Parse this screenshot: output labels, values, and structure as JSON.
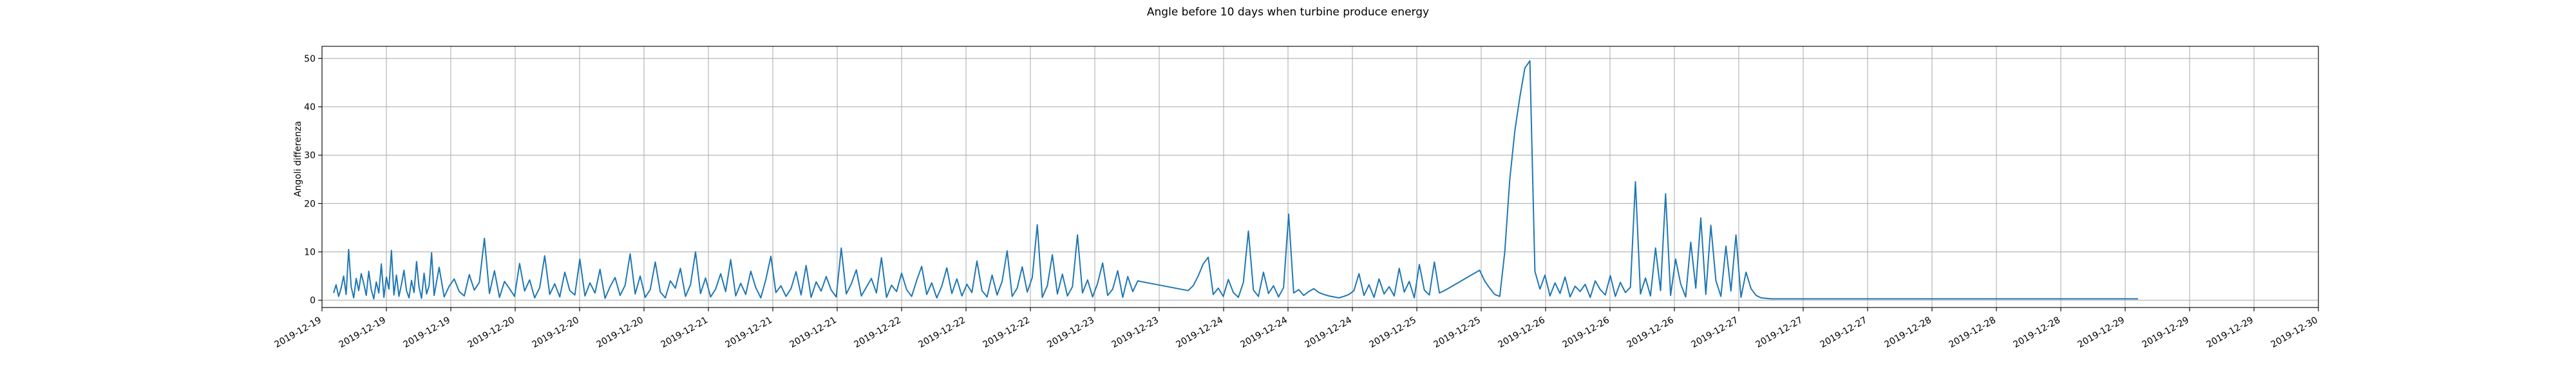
{
  "chart_data": {
    "type": "line",
    "title": "Angle before 10 days when turbine produce energy",
    "xlabel": "",
    "ylabel": "Angoli differenza",
    "grid": true,
    "ylim": [
      -1.5,
      52.5
    ],
    "yticks": [
      0,
      10,
      20,
      30,
      40,
      50
    ],
    "xticks": [
      "2019-12-19",
      "2019-12-19",
      "2019-12-19",
      "2019-12-20",
      "2019-12-20",
      "2019-12-20",
      "2019-12-21",
      "2019-12-21",
      "2019-12-21",
      "2019-12-22",
      "2019-12-22",
      "2019-12-22",
      "2019-12-23",
      "2019-12-23",
      "2019-12-24",
      "2019-12-24",
      "2019-12-24",
      "2019-12-25",
      "2019-12-25",
      "2019-12-26",
      "2019-12-26",
      "2019-12-26",
      "2019-12-27",
      "2019-12-27",
      "2019-12-27",
      "2019-12-28",
      "2019-12-28",
      "2019-12-28",
      "2019-12-29",
      "2019-12-29",
      "2019-12-29",
      "2019-12-30"
    ],
    "series": [
      {
        "color": "#1f77b4",
        "x": [
          0.0,
          0.05,
          0.1,
          0.15,
          0.2,
          0.25,
          0.3,
          0.35,
          0.4,
          0.45,
          0.5,
          0.55,
          0.6,
          0.65,
          0.7,
          0.75,
          0.8,
          0.85,
          0.9,
          0.95,
          1.0,
          1.05,
          1.1,
          1.15,
          1.2,
          1.25,
          1.3,
          1.35,
          1.4,
          1.45,
          1.5,
          1.55,
          1.6,
          1.65,
          1.7,
          1.75,
          1.8,
          1.85,
          1.9,
          1.95,
          2.0,
          2.1,
          2.2,
          2.3,
          2.4,
          2.5,
          2.6,
          2.7,
          2.8,
          2.9,
          3.0,
          3.1,
          3.2,
          3.3,
          3.4,
          3.5,
          3.6,
          3.7,
          3.8,
          3.9,
          4.0,
          4.1,
          4.2,
          4.3,
          4.4,
          4.5,
          4.6,
          4.7,
          4.8,
          4.9,
          5.0,
          5.1,
          5.2,
          5.3,
          5.4,
          5.5,
          5.6,
          5.7,
          5.8,
          5.9,
          6.0,
          6.1,
          6.2,
          6.3,
          6.4,
          6.5,
          6.6,
          6.7,
          6.8,
          6.9,
          7.0,
          7.1,
          7.2,
          7.3,
          7.4,
          7.5,
          7.6,
          7.7,
          7.8,
          7.9,
          8.0,
          8.1,
          8.2,
          8.3,
          8.4,
          8.5,
          8.6,
          8.7,
          8.8,
          8.9,
          9.0,
          9.1,
          9.2,
          9.3,
          9.4,
          9.5,
          9.6,
          9.7,
          9.8,
          9.9,
          10.0,
          10.1,
          10.2,
          10.3,
          10.4,
          10.5,
          10.6,
          10.7,
          10.8,
          10.9,
          11.0,
          11.1,
          11.2,
          11.3,
          11.4,
          11.5,
          11.6,
          11.7,
          11.8,
          11.9,
          12.0,
          12.1,
          12.2,
          12.3,
          12.4,
          12.5,
          12.6,
          12.7,
          12.8,
          12.9,
          13.0,
          13.1,
          13.2,
          13.3,
          13.4,
          13.5,
          13.6,
          13.7,
          13.8,
          13.9,
          14.0,
          14.1,
          14.2,
          14.3,
          14.4,
          14.5,
          14.6,
          14.7,
          14.8,
          14.9,
          15.0,
          15.1,
          15.2,
          15.3,
          15.4,
          15.5,
          15.6,
          15.7,
          15.8,
          15.9,
          16.0,
          16.1,
          16.2,
          16.3,
          16.4,
          16.5,
          16.6,
          16.7,
          16.8,
          16.9,
          17.0,
          17.1,
          17.2,
          17.3,
          17.4,
          17.5,
          17.6,
          17.7,
          17.8,
          17.9,
          18.0,
          18.1,
          18.2,
          18.3,
          18.4,
          18.5,
          18.6,
          18.7,
          18.8,
          18.9,
          19.0,
          19.1,
          19.2,
          19.3,
          19.4,
          19.5,
          19.6,
          19.7,
          19.8,
          19.9,
          20.0,
          20.1,
          20.2,
          20.3,
          20.4,
          20.5,
          20.6,
          20.7,
          20.8,
          20.9,
          21.0,
          21.1,
          21.2,
          21.3,
          21.4,
          21.5,
          21.6,
          21.7,
          21.8,
          21.9,
          22.0,
          22.1,
          22.2,
          22.3,
          22.4,
          22.5,
          22.6,
          22.7,
          22.8,
          22.9,
          23.0,
          23.1,
          23.2,
          23.3,
          23.4,
          23.5,
          23.6,
          23.7,
          23.8,
          23.9,
          24.0,
          24.1,
          24.2,
          24.3,
          24.4,
          24.5,
          24.6,
          24.7,
          24.8,
          24.9,
          25.0,
          25.1,
          25.2,
          25.3,
          25.4,
          25.5,
          25.6,
          25.7,
          25.8,
          25.9,
          26.0,
          26.1,
          26.2,
          26.3,
          26.4,
          26.5,
          26.6,
          26.7,
          26.8,
          26.9,
          27.0,
          27.1,
          27.2,
          27.3,
          27.4,
          27.5,
          27.6,
          27.7,
          27.8,
          27.9,
          28.0,
          28.1,
          28.2,
          28.3,
          28.4,
          28.5,
          28.6,
          28.7,
          28.8,
          28.9,
          29.0,
          29.1,
          29.2,
          29.3,
          29.4,
          29.5,
          29.6,
          29.7,
          29.8,
          29.9,
          30.0,
          30.1,
          30.2,
          30.3,
          30.4,
          30.5,
          30.6,
          30.7,
          30.8,
          30.9,
          31.0,
          31.1,
          31.2,
          31.3,
          31.4,
          31.5,
          31.6,
          31.7,
          31.8,
          31.9,
          32.0,
          32.1,
          32.2,
          32.3,
          32.4,
          32.5,
          32.6,
          32.7,
          32.8,
          32.9,
          33.0,
          33.1,
          33.2,
          33.3,
          33.4,
          33.5,
          33.6,
          33.7,
          33.8,
          33.9,
          34.0,
          34.1,
          34.2,
          34.3,
          34.4,
          34.5,
          34.6,
          34.7,
          34.8,
          34.9,
          35.0,
          35.1,
          35.2,
          35.3,
          35.4,
          35.5,
          35.6,
          35.7,
          35.8,
          35.9
        ],
        "y": [
          1.5,
          3.2,
          0.8,
          2.5,
          5.0,
          1.2,
          10.5,
          2.8,
          0.5,
          4.5,
          2.0,
          5.5,
          3.5,
          1.0,
          6.0,
          2.2,
          0.3,
          3.8,
          1.5,
          7.5,
          0.6,
          4.8,
          2.3,
          10.3,
          1.1,
          5.2,
          0.8,
          3.3,
          6.2,
          2.0,
          0.5,
          4.1,
          1.6,
          8.0,
          2.7,
          0.4,
          5.6,
          1.3,
          3.0,
          9.8,
          1.0,
          6.8,
          0.7,
          2.9,
          4.4,
          1.8,
          0.9,
          5.3,
          2.1,
          3.7,
          12.8,
          1.4,
          6.1,
          0.6,
          3.9,
          2.4,
          0.8,
          7.6,
          1.9,
          4.2,
          0.5,
          2.6,
          9.2,
          1.2,
          3.4,
          0.7,
          5.8,
          2.0,
          1.1,
          8.5,
          0.9,
          3.6,
          1.5,
          6.4,
          0.4,
          2.8,
          4.7,
          1.0,
          3.1,
          9.6,
          1.3,
          5.0,
          0.6,
          2.2,
          7.9,
          1.7,
          0.5,
          4.0,
          2.5,
          6.6,
          0.8,
          3.2,
          10.0,
          1.4,
          4.6,
          0.7,
          2.3,
          5.5,
          1.8,
          8.4,
          0.9,
          3.5,
          1.2,
          6.0,
          2.6,
          0.5,
          4.3,
          9.1,
          1.6,
          3.0,
          0.8,
          2.4,
          5.9,
          1.1,
          7.2,
          0.6,
          3.8,
          1.9,
          4.9,
          2.1,
          0.7,
          10.8,
          1.3,
          3.4,
          6.3,
          0.9,
          2.7,
          4.5,
          1.5,
          8.8,
          0.6,
          3.1,
          1.8,
          5.6,
          2.2,
          0.8,
          4.1,
          7.0,
          1.2,
          3.6,
          0.5,
          2.9,
          6.7,
          1.4,
          4.4,
          0.9,
          3.3,
          1.6,
          8.1,
          2.0,
          0.7,
          5.2,
          1.1,
          3.9,
          10.2,
          0.8,
          2.5,
          6.9,
          1.7,
          4.7,
          15.6,
          0.6,
          3.0,
          9.4,
          1.3,
          5.4,
          0.9,
          2.8,
          13.5,
          1.5,
          4.2,
          0.7,
          3.5,
          7.7,
          1.0,
          2.3,
          6.1,
          0.6,
          4.9,
          1.8,
          4.0,
          3.8,
          3.6,
          3.4,
          3.2,
          3.0,
          2.8,
          2.6,
          2.4,
          2.2,
          2.0,
          3.0,
          5.0,
          7.5,
          8.9,
          1.2,
          2.5,
          0.8,
          4.3,
          1.6,
          0.6,
          3.7,
          14.3,
          2.1,
          0.8,
          5.8,
          1.4,
          3.0,
          0.7,
          2.6,
          17.8,
          1.5,
          2.2,
          1.0,
          1.8,
          2.4,
          1.6,
          1.2,
          0.9,
          0.7,
          0.5,
          0.8,
          1.2,
          2.0,
          5.5,
          1.0,
          3.2,
          0.6,
          4.4,
          1.3,
          2.8,
          0.9,
          6.6,
          1.7,
          3.9,
          0.5,
          7.4,
          2.1,
          1.1,
          7.9,
          1.5,
          2.0,
          2.6,
          3.2,
          3.8,
          4.4,
          5.0,
          5.6,
          6.2,
          4.0,
          2.5,
          1.2,
          0.8,
          10.0,
          25.0,
          35.0,
          42.0,
          48.0,
          49.5,
          6.0,
          2.3,
          5.2,
          0.9,
          3.6,
          1.4,
          4.8,
          0.7,
          2.9,
          1.8,
          3.3,
          0.6,
          4.0,
          2.2,
          1.1,
          5.1,
          0.8,
          3.7,
          1.6,
          2.7,
          24.5,
          1.3,
          4.6,
          0.9,
          10.8,
          2.0,
          22.0,
          1.0,
          8.5,
          3.4,
          0.7,
          12.0,
          2.5,
          17.0,
          1.2,
          15.5,
          4.1,
          0.8,
          11.2,
          1.9,
          13.5,
          0.6,
          5.8,
          2.4,
          1.0,
          0.5,
          0.4,
          0.3,
          0.3,
          0.3,
          0.3,
          0.3,
          0.3,
          0.3,
          0.3,
          0.3,
          0.3,
          0.3,
          0.3,
          0.3,
          0.3,
          0.3,
          0.3,
          0.3,
          0.3,
          0.3,
          0.3,
          0.3,
          0.3,
          0.3,
          0.3,
          0.3,
          0.3,
          0.3,
          0.3,
          0.3,
          0.3,
          0.3,
          0.3,
          0.3,
          0.3,
          0.3,
          0.3,
          0.3,
          0.3,
          0.3,
          0.3,
          0.3,
          0.3,
          0.3,
          0.3,
          0.3,
          0.3,
          0.3,
          0.3,
          0.3,
          0.3,
          0.3,
          0.3,
          0.3,
          0.3,
          0.3,
          0.3,
          0.3,
          0.3,
          0.3,
          0.3,
          0.3,
          0.3,
          0.3,
          0.3,
          0.3,
          0.3,
          0.3,
          0.3,
          0.3,
          0.3,
          0.3,
          0.3,
          0.3,
          0.3
        ]
      }
    ]
  }
}
